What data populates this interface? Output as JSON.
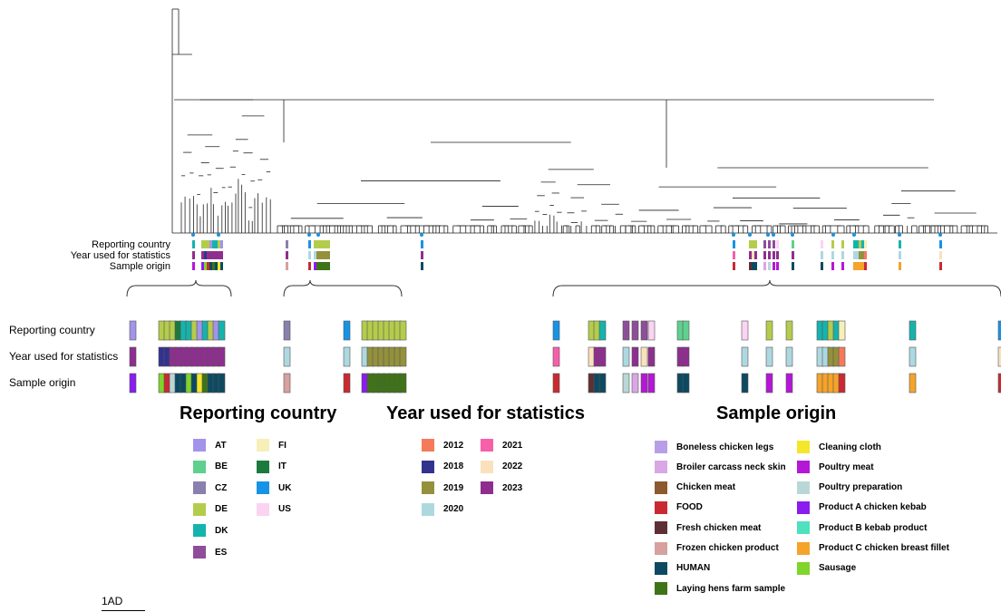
{
  "track_labels": [
    "Reporting country",
    "Year used for statistics",
    "Sample origin"
  ],
  "legends": {
    "country": {
      "title": "Reporting country",
      "items": [
        {
          "label": "AT",
          "color": "#a393eb"
        },
        {
          "label": "BE",
          "color": "#5fd08e"
        },
        {
          "label": "CZ",
          "color": "#8a80ad"
        },
        {
          "label": "DE",
          "color": "#b4cc4c"
        },
        {
          "label": "DK",
          "color": "#16b3ad"
        },
        {
          "label": "ES",
          "color": "#8e4d99"
        },
        {
          "label": "FI",
          "color": "#f8efb8"
        },
        {
          "label": "IT",
          "color": "#1c7a3d"
        },
        {
          "label": "UK",
          "color": "#1793e6"
        },
        {
          "label": "US",
          "color": "#fbd3f3"
        }
      ]
    },
    "year": {
      "title": "Year used for statistics",
      "items": [
        {
          "label": "2012",
          "color": "#f47a5a"
        },
        {
          "label": "2018",
          "color": "#33338f"
        },
        {
          "label": "2019",
          "color": "#94913c"
        },
        {
          "label": "2020",
          "color": "#add8e0"
        },
        {
          "label": "2021",
          "color": "#f75fa8"
        },
        {
          "label": "2022",
          "color": "#fae1bd"
        },
        {
          "label": "2023",
          "color": "#8e2f8f"
        }
      ]
    },
    "origin": {
      "title": "Sample origin",
      "items": [
        {
          "label": "Boneless chicken legs",
          "color": "#b89ee6"
        },
        {
          "label": "Broiler carcass neck skin",
          "color": "#d9a6e6"
        },
        {
          "label": "Chicken meat",
          "color": "#8c5a2e"
        },
        {
          "label": "FOOD",
          "color": "#c92a32"
        },
        {
          "label": "Fresh chicken meat",
          "color": "#5e2f35"
        },
        {
          "label": "Frozen chicken product",
          "color": "#d6a19e"
        },
        {
          "label": "HUMAN",
          "color": "#0d4a61"
        },
        {
          "label": "Laying hens farm sample",
          "color": "#3f7317"
        },
        {
          "label": "Cleaning cloth",
          "color": "#f4e62a"
        },
        {
          "label": "Poultry meat",
          "color": "#b517d6"
        },
        {
          "label": "Poultry preparation",
          "color": "#b9d7d6"
        },
        {
          "label": "Product A chicken kebab",
          "color": "#8b1cf0"
        },
        {
          "label": "Product B kebab product",
          "color": "#4fe0bd"
        },
        {
          "label": "Product C chicken breast fillet",
          "color": "#f5a32a"
        },
        {
          "label": "Sausage",
          "color": "#80d42b"
        }
      ]
    }
  },
  "scale_bar_label": "1AD"
}
